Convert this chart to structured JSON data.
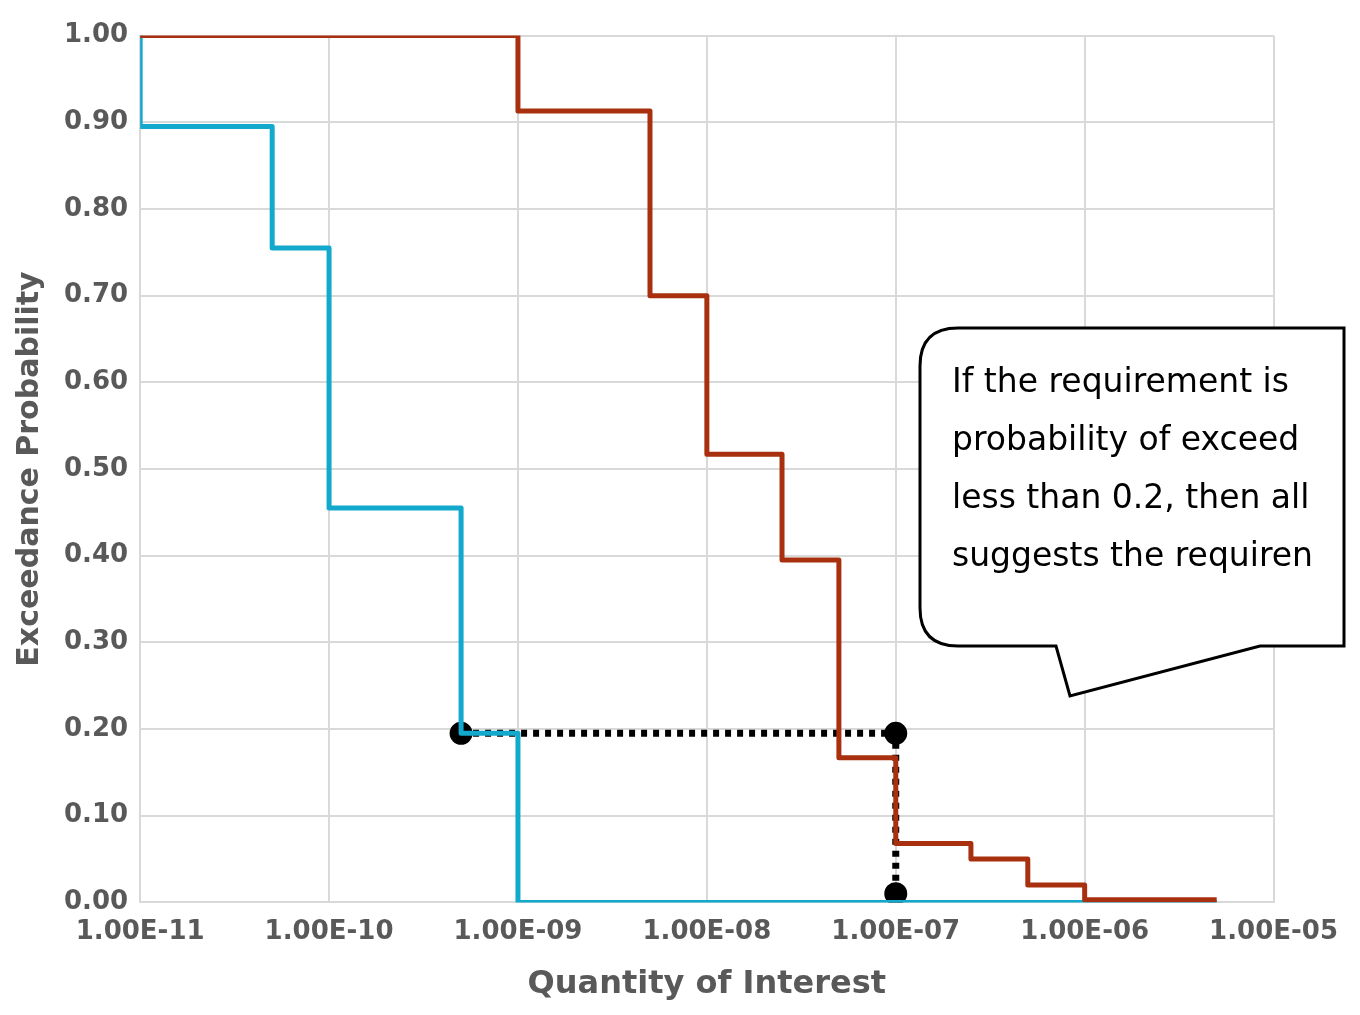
{
  "chart_data": {
    "type": "step",
    "xlabel": "Quantity of Interest",
    "ylabel": "Exceedance Probability",
    "log": "x",
    "grid": true,
    "xlim": [
      1e-11,
      1e-05
    ],
    "xticks": [
      {
        "value": 1e-11,
        "label": "1.00E-11"
      },
      {
        "value": 1e-10,
        "label": "1.00E-10"
      },
      {
        "value": 1e-09,
        "label": "1.00E-09"
      },
      {
        "value": 1e-08,
        "label": "1.00E-08"
      },
      {
        "value": 1e-07,
        "label": "1.00E-07"
      },
      {
        "value": 1e-06,
        "label": "1.00E-06"
      },
      {
        "value": 1e-05,
        "label": "1.00E-05"
      }
    ],
    "ylim": [
      0,
      1
    ],
    "yticks": [
      {
        "value": 0,
        "label": "0.00"
      },
      {
        "value": 0.1,
        "label": "0.10"
      },
      {
        "value": 0.2,
        "label": "0.20"
      },
      {
        "value": 0.3,
        "label": "0.30"
      },
      {
        "value": 0.4,
        "label": "0.40"
      },
      {
        "value": 0.5,
        "label": "0.50"
      },
      {
        "value": 0.6,
        "label": "0.60"
      },
      {
        "value": 0.7,
        "label": "0.70"
      },
      {
        "value": 0.8,
        "label": "0.80"
      },
      {
        "value": 0.9,
        "label": "0.90"
      },
      {
        "value": 1,
        "label": "1.00"
      }
    ],
    "series": [
      {
        "type": "step",
        "color": "#a8300e",
        "x": [
          1e-11,
          1e-09,
          5e-09,
          1e-08,
          2.5e-08,
          5e-08,
          1e-07,
          2.5e-07,
          5e-07,
          1e-06,
          5e-06
        ],
        "values": [
          1,
          0.913,
          0.7,
          0.517,
          0.395,
          0.167,
          0.068,
          0.05,
          0.02,
          0.003,
          0.003
        ]
      },
      {
        "type": "step",
        "color": "#12a9cc",
        "x": [
          1e-11,
          1e-11,
          5e-11,
          1e-10,
          5e-10,
          1e-09,
          5e-06
        ],
        "values": [
          1,
          0.895,
          0.755,
          0.455,
          0.195,
          0,
          0
        ]
      },
      {
        "type": "line",
        "color": "#000000",
        "line_style": "dotted",
        "marker": "circle",
        "x": [
          5e-10,
          1e-07,
          1e-07
        ],
        "values": [
          0.195,
          0.195,
          0.01
        ]
      }
    ],
    "annotations": [
      "If the requirement is\nprobability of exceed\nless than 0.2, then all\nsuggests the requiren"
    ]
  }
}
